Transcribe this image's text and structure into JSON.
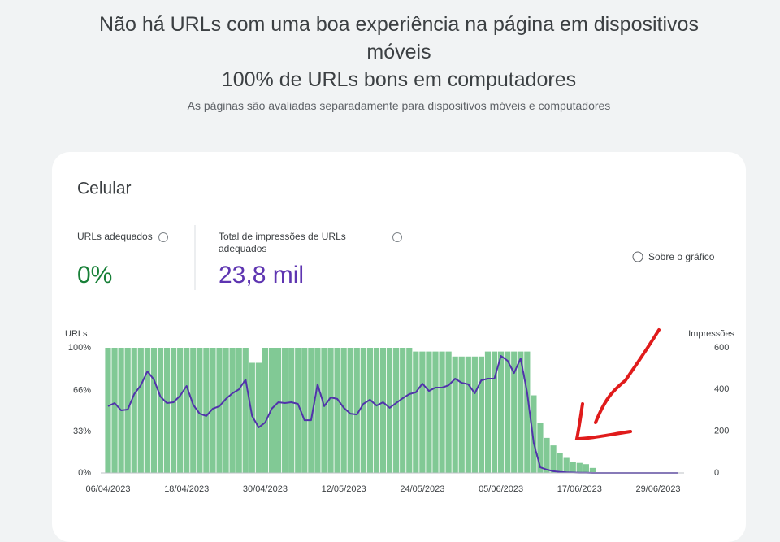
{
  "header": {
    "title": "Não há URLs com uma boa experiência na página em dispositivos móveis",
    "title2": "100% de URLs bons em computadores",
    "subtitle": "As páginas são avaliadas separadamente para dispositivos móveis e computadores"
  },
  "card": {
    "title": "Celular",
    "metrics": [
      {
        "label": "URLs adequados",
        "value": "0%",
        "color": "#188038"
      },
      {
        "label": "Total de impressões de URLs adequados",
        "value": "23,8 mil",
        "color": "#5e35b1"
      }
    ],
    "about": "Sobre o gráfico"
  },
  "chart_data": {
    "type": "bar",
    "y_label": "URLs",
    "y2_label": "Impressões",
    "categories": [
      "06/04/2023",
      null,
      null,
      null,
      null,
      null,
      null,
      null,
      null,
      null,
      null,
      null,
      "18/04/2023",
      null,
      null,
      null,
      null,
      null,
      null,
      null,
      null,
      null,
      null,
      null,
      "30/04/2023",
      null,
      null,
      null,
      null,
      null,
      null,
      null,
      null,
      null,
      null,
      null,
      "12/05/2023",
      null,
      null,
      null,
      null,
      null,
      null,
      null,
      null,
      null,
      null,
      null,
      "24/05/2023",
      null,
      null,
      null,
      null,
      null,
      null,
      null,
      null,
      null,
      null,
      null,
      "05/06/2023",
      null,
      null,
      null,
      null,
      null,
      null,
      null,
      null,
      null,
      null,
      null,
      "17/06/2023",
      null,
      null,
      null,
      null,
      null,
      null,
      null,
      null,
      null,
      null,
      null,
      "29/06/2023",
      null,
      null,
      null
    ],
    "series": [
      {
        "color": "#81c995",
        "values": [
          100,
          100,
          100,
          100,
          100,
          100,
          100,
          100,
          100,
          100,
          100,
          100,
          100,
          100,
          100,
          100,
          100,
          100,
          100,
          100,
          100,
          100,
          88,
          88,
          100,
          100,
          100,
          100,
          100,
          100,
          100,
          100,
          100,
          100,
          100,
          100,
          100,
          100,
          100,
          100,
          100,
          100,
          100,
          100,
          100,
          100,
          100,
          97,
          97,
          97,
          97,
          97,
          97,
          93,
          93,
          93,
          93,
          93,
          97,
          97,
          97,
          97,
          97,
          97,
          97,
          62,
          40,
          28,
          22,
          16,
          12,
          9,
          8,
          7,
          4,
          0,
          0,
          0,
          0,
          0,
          0,
          0,
          0,
          0,
          0,
          0,
          0,
          0
        ]
      },
      {
        "color": "#5133ab",
        "type": "line",
        "axis": "y2",
        "values": [
          320,
          335,
          300,
          304,
          378,
          420,
          487,
          448,
          366,
          335,
          339,
          370,
          417,
          327,
          284,
          273,
          308,
          320,
          355,
          382,
          401,
          448,
          273,
          218,
          242,
          308,
          339,
          335,
          339,
          331,
          253,
          253,
          425,
          320,
          362,
          355,
          312,
          284,
          280,
          331,
          351,
          323,
          339,
          312,
          335,
          358,
          378,
          386,
          428,
          393,
          409,
          409,
          420,
          452,
          432,
          425,
          382,
          444,
          452,
          452,
          561,
          538,
          479,
          549,
          386,
          144,
          27,
          16,
          8,
          5,
          3,
          2,
          1,
          1,
          0,
          0,
          0,
          0,
          0,
          0,
          0,
          0,
          0,
          0,
          0,
          0,
          0,
          0
        ]
      }
    ],
    "ylim": [
      0,
      100
    ],
    "yticks": [
      {
        "value": 0,
        "label": "0%"
      },
      {
        "value": 33,
        "label": "33%"
      },
      {
        "value": 66,
        "label": "66%"
      },
      {
        "value": 100,
        "label": "100%"
      }
    ],
    "y2lim": [
      0,
      600
    ],
    "y2ticks": [
      0,
      200,
      400,
      600
    ],
    "grid": false
  }
}
